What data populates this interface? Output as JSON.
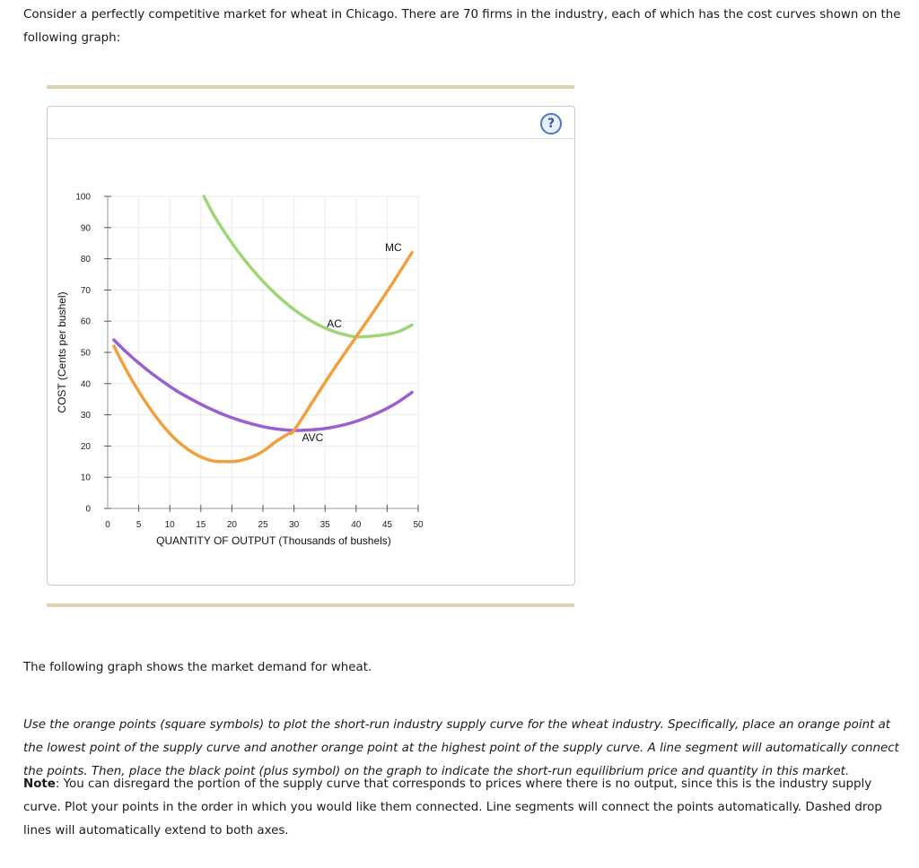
{
  "intro_text": "Consider a perfectly competitive market for wheat in Chicago. There are 70 firms in the industry, each of which has the cost curves shown on the following graph:",
  "help_label": "?",
  "demand_text": "The following graph shows the market demand for wheat.",
  "instructions": "Use the orange points (square symbols) to plot the short-run industry supply curve for the wheat industry. Specifically, place an orange point at the lowest point of the supply curve and another orange point at the highest point of the supply curve. A line segment will automatically connect the points. Then, place the black point (plus symbol) on the graph to indicate the short-run equilibrium price and quantity in this market.",
  "note_label": "Note",
  "note_text": ": You can disregard the portion of the supply curve that corresponds to prices where there is no output, since this is the industry supply curve. Plot your points in the order in which you would like them connected. Line segments will connect the points automatically. Dashed drop lines will automatically extend to both axes.",
  "chart_data": {
    "type": "line",
    "title": "",
    "xlabel": "QUANTITY OF OUTPUT (Thousands of bushels)",
    "ylabel": "COST (Cents per bushel)",
    "xlim": [
      0,
      50
    ],
    "ylim": [
      0,
      100
    ],
    "xticks": [
      0,
      5,
      10,
      15,
      20,
      25,
      30,
      35,
      40,
      45,
      50
    ],
    "yticks": [
      0,
      10,
      20,
      30,
      40,
      50,
      60,
      70,
      80,
      90,
      100
    ],
    "grid": true,
    "series": [
      {
        "name": "AC",
        "color": "#9ed675",
        "label_at": [
          36.5,
          58
        ],
        "x": [
          15.5,
          17,
          19,
          21,
          23,
          25,
          27,
          29,
          31,
          33,
          35,
          37,
          39,
          40,
          41,
          43,
          45,
          47,
          49
        ],
        "y": [
          100,
          94.3,
          88,
          82.3,
          77.3,
          72.8,
          68.8,
          65.3,
          62.3,
          59.8,
          57.8,
          56.3,
          55.3,
          55,
          55,
          55.3,
          55.8,
          56.8,
          58.8
        ]
      },
      {
        "name": "AVC",
        "color": "#9b5fd0",
        "label_at": [
          33,
          21.5
        ],
        "x": [
          1,
          3,
          5,
          7,
          9,
          11,
          13,
          15,
          17,
          19,
          21,
          23,
          25,
          27,
          29,
          30,
          31,
          33,
          35,
          37,
          39,
          41,
          43,
          45,
          47,
          49
        ],
        "y": [
          54,
          50.1,
          46.6,
          43.4,
          40.5,
          37.8,
          35.5,
          33.4,
          31.5,
          29.8,
          28.4,
          27.2,
          26.2,
          25.5,
          25.1,
          25,
          25,
          25.2,
          25.6,
          26.3,
          27.3,
          28.6,
          30.2,
          32.1,
          34.4,
          37.2
        ]
      },
      {
        "name": "MC",
        "color": "#f0a03c",
        "label_at": [
          46,
          82.5
        ],
        "x": [
          1,
          3,
          5,
          7,
          9,
          11,
          13,
          15,
          17,
          19,
          20,
          21,
          23,
          25,
          27,
          29,
          30,
          33,
          36,
          40,
          43,
          46,
          49
        ],
        "y": [
          52,
          44.3,
          37.5,
          31.5,
          26.3,
          22,
          18.8,
          16.5,
          15.2,
          15,
          15,
          15.2,
          16.3,
          18.3,
          21.3,
          23.8,
          25,
          34.2,
          43.4,
          55,
          63.6,
          72.6,
          82
        ]
      }
    ]
  }
}
